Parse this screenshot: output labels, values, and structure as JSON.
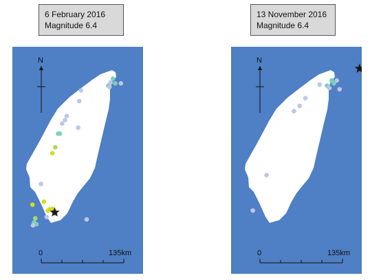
{
  "maps": [
    {
      "caption": {
        "date": "6 February 2016",
        "magnitude": "Magnitude 6.4"
      },
      "north_label": "N",
      "scale": {
        "start": "0",
        "end": "135km"
      },
      "epicenter": {
        "lon": 120.54,
        "lat": 22.92
      },
      "stations": [
        {
          "lon": 121.56,
          "lat": 25.18,
          "c": "#7ecfbc"
        },
        {
          "lon": 121.52,
          "lat": 25.12,
          "c": "#bcc7e8"
        },
        {
          "lon": 121.6,
          "lat": 25.1,
          "c": "#7ecfbc"
        },
        {
          "lon": 121.48,
          "lat": 25.06,
          "c": "#7ecfbc"
        },
        {
          "lon": 121.7,
          "lat": 25.1,
          "c": "#bcc7e8"
        },
        {
          "lon": 121.5,
          "lat": 25.04,
          "c": "#bcc7e8"
        },
        {
          "lon": 121.0,
          "lat": 24.98,
          "c": "#bcc7e8"
        },
        {
          "lon": 120.97,
          "lat": 24.8,
          "c": "#bcc7e8"
        },
        {
          "lon": 120.75,
          "lat": 24.55,
          "c": "#bcc7e8"
        },
        {
          "lon": 120.72,
          "lat": 24.48,
          "c": "#bcc7e8"
        },
        {
          "lon": 120.95,
          "lat": 24.35,
          "c": "#bcc7e8"
        },
        {
          "lon": 120.67,
          "lat": 24.42,
          "c": "#bcc7e8"
        },
        {
          "lon": 120.6,
          "lat": 24.25,
          "c": "#7ecfbc"
        },
        {
          "lon": 120.63,
          "lat": 24.25,
          "c": "#7ecfbc"
        },
        {
          "lon": 120.55,
          "lat": 24.02,
          "c": "#a8d86a"
        },
        {
          "lon": 120.5,
          "lat": 23.92,
          "c": "#d4dc1e"
        },
        {
          "lon": 120.3,
          "lat": 23.4,
          "c": "#bcc7e8"
        },
        {
          "lon": 120.15,
          "lat": 23.05,
          "c": "#d4dc1e"
        },
        {
          "lon": 120.35,
          "lat": 23.1,
          "c": "#d4dc1e"
        },
        {
          "lon": 120.42,
          "lat": 22.95,
          "c": "#d4dc1e"
        },
        {
          "lon": 120.45,
          "lat": 22.97,
          "c": "#d4dc1e"
        },
        {
          "lon": 120.5,
          "lat": 22.98,
          "c": "#d4dc1e"
        },
        {
          "lon": 120.55,
          "lat": 22.9,
          "c": "#bcc7e8"
        },
        {
          "lon": 120.4,
          "lat": 22.84,
          "c": "#bcc7e8"
        },
        {
          "lon": 120.2,
          "lat": 22.82,
          "c": "#a8d86a"
        },
        {
          "lon": 120.18,
          "lat": 22.75,
          "c": "#7ecfbc"
        },
        {
          "lon": 120.22,
          "lat": 22.72,
          "c": "#7ecfbc"
        },
        {
          "lon": 120.16,
          "lat": 22.7,
          "c": "#bcc7e8"
        },
        {
          "lon": 121.1,
          "lat": 22.8,
          "c": "#bcc7e8"
        }
      ]
    },
    {
      "caption": {
        "date": "13 November 2016",
        "magnitude": "Magnitude 6.4"
      },
      "north_label": "N",
      "scale": {
        "start": "0",
        "end": "135km"
      },
      "epicenter": {
        "lon": 122.05,
        "lat": 25.35
      },
      "stations": [
        {
          "lon": 121.56,
          "lat": 25.15,
          "c": "#7ecfbc"
        },
        {
          "lon": 121.65,
          "lat": 25.15,
          "c": "#bcc7e8"
        },
        {
          "lon": 121.6,
          "lat": 25.1,
          "c": "#7ecfbc"
        },
        {
          "lon": 121.48,
          "lat": 25.06,
          "c": "#7ecfbc"
        },
        {
          "lon": 121.52,
          "lat": 25.02,
          "c": "#bcc7e8"
        },
        {
          "lon": 121.7,
          "lat": 25.0,
          "c": "#bcc7e8"
        },
        {
          "lon": 121.35,
          "lat": 25.08,
          "c": "#bcc7e8"
        },
        {
          "lon": 121.1,
          "lat": 24.85,
          "c": "#bcc7e8"
        },
        {
          "lon": 121.0,
          "lat": 24.72,
          "c": "#bcc7e8"
        },
        {
          "lon": 120.9,
          "lat": 24.63,
          "c": "#bcc7e8"
        },
        {
          "lon": 120.42,
          "lat": 23.55,
          "c": "#bcc7e8"
        },
        {
          "lon": 120.18,
          "lat": 22.95,
          "c": "#bcc7e8"
        }
      ]
    }
  ],
  "colors": {
    "sea": "#4f7fc4",
    "land": "#ffffff",
    "epicenter": "#1a1a1a"
  }
}
